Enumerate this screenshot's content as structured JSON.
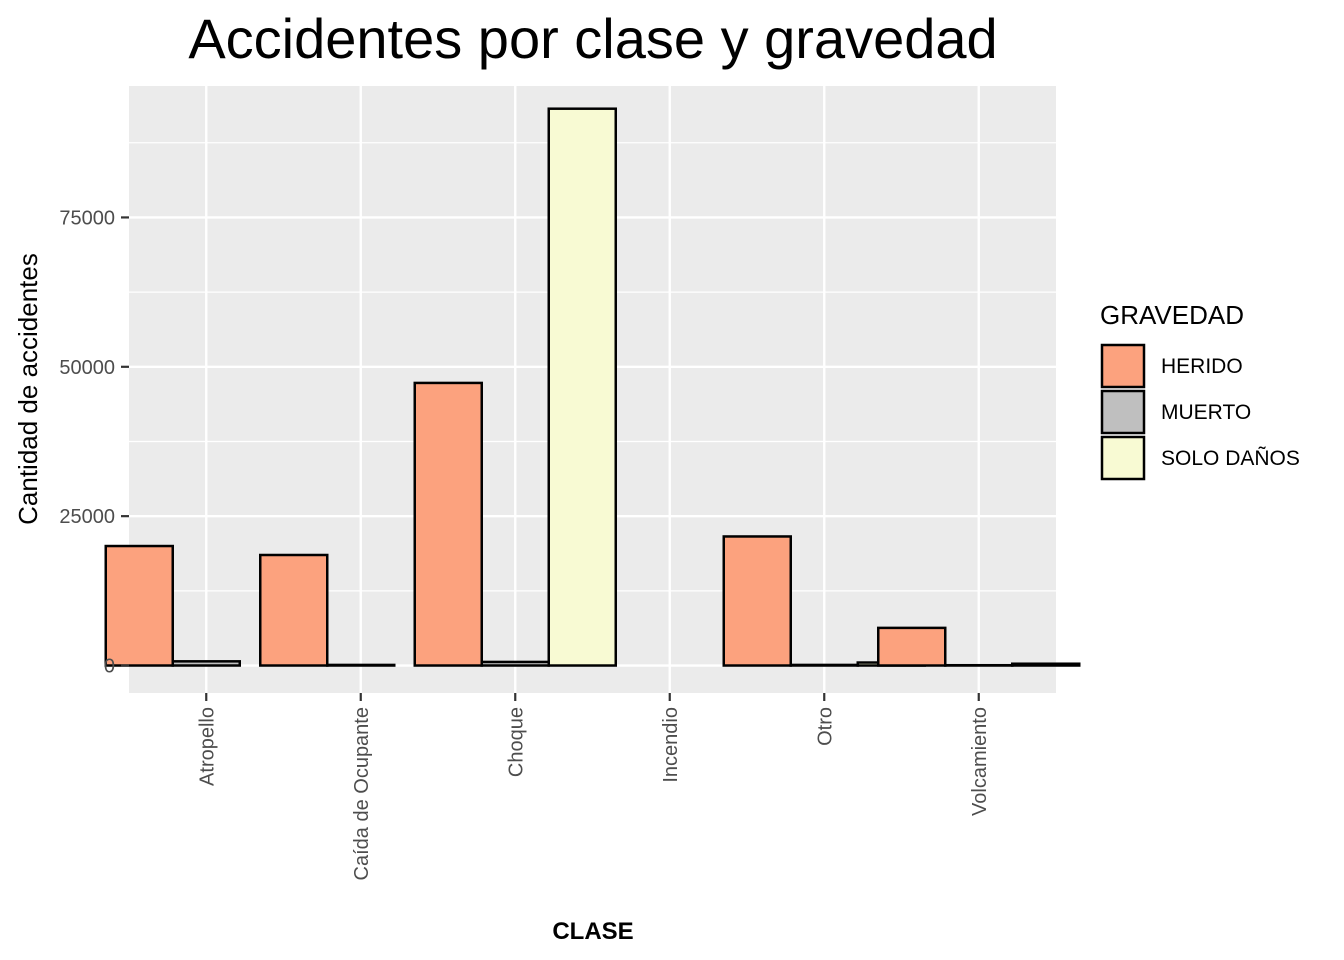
{
  "chart_data": {
    "type": "bar",
    "title": "Accidentes por clase y gravedad",
    "xlabel": "CLASE",
    "ylabel": "Cantidad de accidentes",
    "categories": [
      "Atropello",
      "Caída de Ocupante",
      "Choque",
      "Incendio",
      "Otro",
      "Volcamiento"
    ],
    "series": [
      {
        "name": "HERIDO",
        "color": "#fca27e",
        "values": [
          20000,
          18500,
          47300,
          0,
          21600,
          6300
        ]
      },
      {
        "name": "MUERTO",
        "color": "#bfbfbf",
        "values": [
          700,
          100,
          600,
          0,
          100,
          50
        ]
      },
      {
        "name": "SOLO DAÑOS",
        "color": "#f8fad3",
        "values": [
          null,
          null,
          93200,
          0,
          500,
          300
        ]
      }
    ],
    "ylim": [
      -4600,
      97000
    ],
    "yticks": [
      0,
      25000,
      50000,
      75000
    ],
    "ytick_labels": [
      "0",
      "25000",
      "50000",
      "75000"
    ],
    "grid": true,
    "legend": {
      "title": "GRAVEDAD",
      "placement": "right"
    }
  }
}
